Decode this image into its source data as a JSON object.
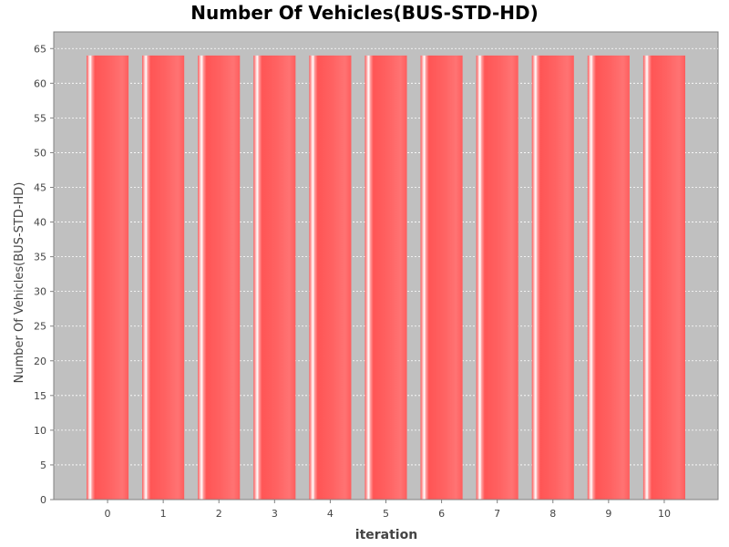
{
  "chart_data": {
    "type": "bar",
    "title": "Number Of Vehicles(BUS-STD-HD)",
    "xlabel": "iteration",
    "ylabel": "Number Of Vehicles(BUS-STD-HD)",
    "categories": [
      "0",
      "1",
      "2",
      "3",
      "4",
      "5",
      "6",
      "7",
      "8",
      "9",
      "10"
    ],
    "values": [
      64,
      64,
      64,
      64,
      64,
      64,
      64,
      64,
      64,
      64,
      64
    ],
    "ylim": [
      0,
      67.4
    ],
    "yticks": [
      0,
      5,
      10,
      15,
      20,
      25,
      30,
      35,
      40,
      45,
      50,
      55,
      60,
      65
    ],
    "grid": true,
    "legend": "none",
    "colors": {
      "plot_background": "#c0c0c0",
      "bar": "#ff5555",
      "grid": "#ffffff",
      "axis": "#808080",
      "tick_label": "#444444"
    }
  }
}
